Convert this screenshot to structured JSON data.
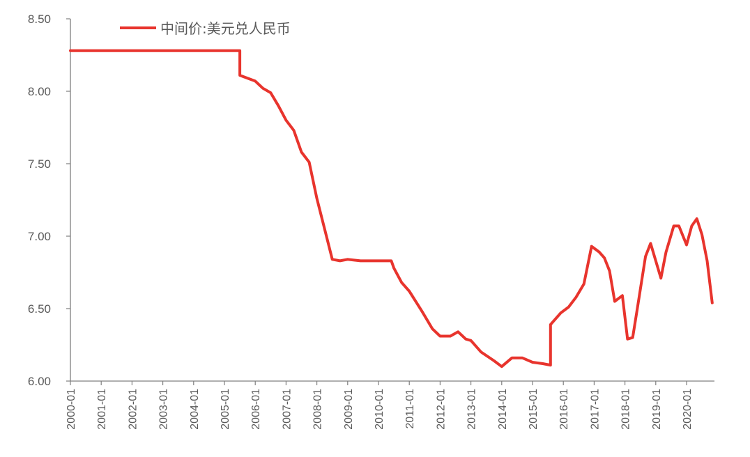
{
  "chart_data": {
    "type": "line",
    "title": "",
    "xlabel": "",
    "ylabel": "",
    "ylim": [
      6.0,
      8.5
    ],
    "y_ticks": [
      "6.00",
      "6.50",
      "7.00",
      "7.50",
      "8.00",
      "8.50"
    ],
    "x_ticks": [
      "2000-01",
      "2001-01",
      "2002-01",
      "2003-01",
      "2004-01",
      "2005-01",
      "2006-01",
      "2007-01",
      "2008-01",
      "2009-01",
      "2010-01",
      "2011-01",
      "2012-01",
      "2013-01",
      "2014-01",
      "2015-01",
      "2016-01",
      "2017-01",
      "2018-01",
      "2019-01",
      "2020-01"
    ],
    "x_range": [
      "2000-01",
      "2020-11"
    ],
    "grid": false,
    "legend_position": "top-left",
    "series": [
      {
        "name": "中间价:美元兑人民币",
        "color": "#e8342d",
        "points": [
          [
            "2000-01",
            8.28
          ],
          [
            "2001-01",
            8.28
          ],
          [
            "2002-01",
            8.28
          ],
          [
            "2003-01",
            8.28
          ],
          [
            "2004-01",
            8.28
          ],
          [
            "2005-01",
            8.28
          ],
          [
            "2005-07",
            8.28
          ],
          [
            "2005-07",
            8.11
          ],
          [
            "2005-10",
            8.09
          ],
          [
            "2006-01",
            8.07
          ],
          [
            "2006-04",
            8.02
          ],
          [
            "2006-07",
            7.99
          ],
          [
            "2006-10",
            7.9
          ],
          [
            "2007-01",
            7.8
          ],
          [
            "2007-04",
            7.73
          ],
          [
            "2007-07",
            7.58
          ],
          [
            "2007-10",
            7.51
          ],
          [
            "2008-01",
            7.26
          ],
          [
            "2008-04",
            7.05
          ],
          [
            "2008-07",
            6.84
          ],
          [
            "2008-10",
            6.83
          ],
          [
            "2009-01",
            6.84
          ],
          [
            "2009-06",
            6.83
          ],
          [
            "2010-01",
            6.83
          ],
          [
            "2010-06",
            6.83
          ],
          [
            "2010-07",
            6.78
          ],
          [
            "2010-10",
            6.68
          ],
          [
            "2011-01",
            6.62
          ],
          [
            "2011-06",
            6.48
          ],
          [
            "2011-10",
            6.36
          ],
          [
            "2012-01",
            6.31
          ],
          [
            "2012-05",
            6.31
          ],
          [
            "2012-08",
            6.34
          ],
          [
            "2012-11",
            6.29
          ],
          [
            "2013-01",
            6.28
          ],
          [
            "2013-05",
            6.2
          ],
          [
            "2013-10",
            6.14
          ],
          [
            "2014-01",
            6.1
          ],
          [
            "2014-05",
            6.16
          ],
          [
            "2014-09",
            6.16
          ],
          [
            "2015-01",
            6.13
          ],
          [
            "2015-05",
            6.12
          ],
          [
            "2015-08",
            6.11
          ],
          [
            "2015-08",
            6.39
          ],
          [
            "2015-12",
            6.47
          ],
          [
            "2016-03",
            6.51
          ],
          [
            "2016-06",
            6.58
          ],
          [
            "2016-09",
            6.67
          ],
          [
            "2016-12",
            6.93
          ],
          [
            "2017-03",
            6.89
          ],
          [
            "2017-05",
            6.85
          ],
          [
            "2017-07",
            6.76
          ],
          [
            "2017-09",
            6.55
          ],
          [
            "2017-12",
            6.59
          ],
          [
            "2018-02",
            6.29
          ],
          [
            "2018-04",
            6.3
          ],
          [
            "2018-06",
            6.52
          ],
          [
            "2018-09",
            6.86
          ],
          [
            "2018-11",
            6.95
          ],
          [
            "2019-01",
            6.83
          ],
          [
            "2019-03",
            6.71
          ],
          [
            "2019-05",
            6.89
          ],
          [
            "2019-08",
            7.07
          ],
          [
            "2019-10",
            7.07
          ],
          [
            "2020-01",
            6.94
          ],
          [
            "2020-03",
            7.07
          ],
          [
            "2020-05",
            7.12
          ],
          [
            "2020-07",
            7.01
          ],
          [
            "2020-09",
            6.83
          ],
          [
            "2020-11",
            6.54
          ]
        ]
      }
    ]
  }
}
